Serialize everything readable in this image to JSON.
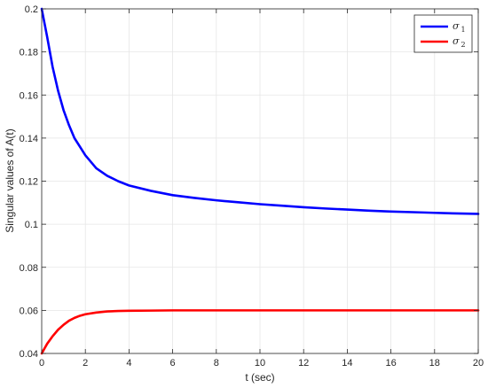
{
  "chart_data": {
    "type": "line",
    "title": "",
    "xlabel": "t (sec)",
    "ylabel": "Singular values of A(t)",
    "xlim": [
      0,
      20
    ],
    "ylim": [
      0.04,
      0.2
    ],
    "xticks": [
      0,
      2,
      4,
      6,
      8,
      10,
      12,
      14,
      16,
      18,
      20
    ],
    "yticks": [
      0.04,
      0.06,
      0.08,
      0.1,
      0.12,
      0.14,
      0.16,
      0.18,
      0.2
    ],
    "xtick_labels": [
      "0",
      "2",
      "4",
      "6",
      "8",
      "10",
      "12",
      "14",
      "16",
      "18",
      "20"
    ],
    "ytick_labels": [
      "0.04",
      "0.06",
      "0.08",
      "0.1",
      "0.12",
      "0.14",
      "0.16",
      "0.18",
      "0.2"
    ],
    "grid": true,
    "legend_position": "top-right",
    "series": [
      {
        "name": "σ1",
        "symbol": "σ",
        "subscript": "1",
        "color": "#0000ff",
        "x": [
          0,
          0.25,
          0.5,
          0.75,
          1,
          1.25,
          1.5,
          1.75,
          2,
          2.5,
          3,
          3.5,
          4,
          5,
          6,
          7,
          8,
          9,
          10,
          11,
          12,
          13,
          14,
          15,
          16,
          17,
          18,
          19,
          20
        ],
        "y": [
          0.2,
          0.187,
          0.173,
          0.162,
          0.153,
          0.146,
          0.14,
          0.136,
          0.132,
          0.126,
          0.1225,
          0.12,
          0.118,
          0.1155,
          0.1135,
          0.1122,
          0.1111,
          0.1102,
          0.1093,
          0.1086,
          0.1079,
          0.1073,
          0.1068,
          0.1063,
          0.1059,
          0.1056,
          0.1053,
          0.105,
          0.1048
        ]
      },
      {
        "name": "σ2",
        "symbol": "σ",
        "subscript": "2",
        "color": "#ff0000",
        "x": [
          0,
          0.25,
          0.5,
          0.75,
          1,
          1.25,
          1.5,
          1.75,
          2,
          2.5,
          3,
          3.5,
          4,
          5,
          6,
          8,
          10,
          12,
          14,
          16,
          18,
          20
        ],
        "y": [
          0.04,
          0.0445,
          0.048,
          0.051,
          0.0533,
          0.0552,
          0.0565,
          0.0575,
          0.0582,
          0.059,
          0.0595,
          0.0597,
          0.0598,
          0.0599,
          0.06,
          0.06,
          0.06,
          0.06,
          0.06,
          0.06,
          0.06,
          0.06
        ]
      }
    ]
  }
}
